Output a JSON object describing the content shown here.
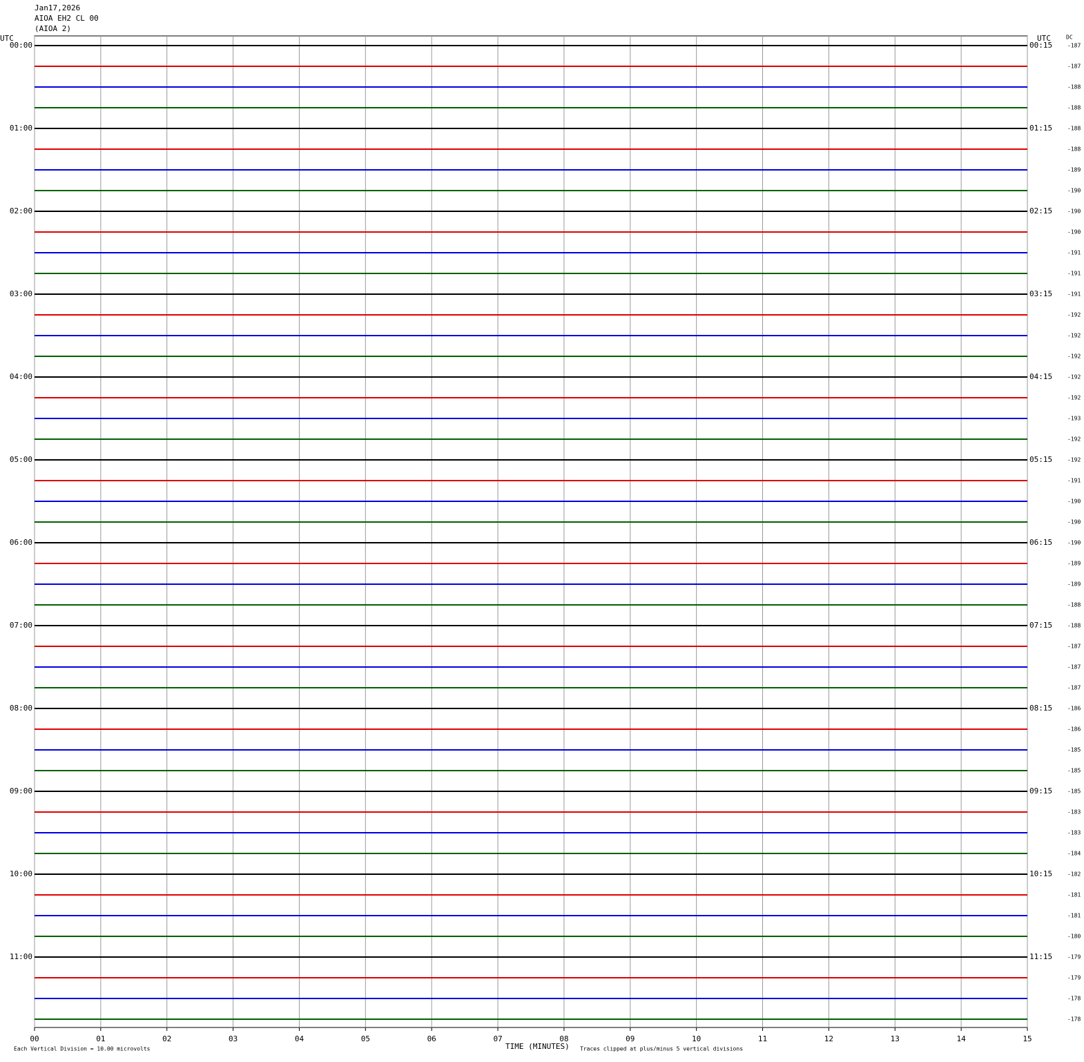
{
  "chart_data": {
    "type": "helicorder",
    "title_lines": [
      "Jan17,2026",
      "AIOA EH2 CL 00",
      "(AIOA 2)"
    ],
    "left_axis_title": "UTC",
    "right_axis_title": "UTC",
    "dc_title": "DC",
    "xlabel": "TIME (MINUTES)",
    "xlim": [
      0,
      15
    ],
    "xticks": [
      {
        "value": 0,
        "label": "00"
      },
      {
        "value": 1,
        "label": "01"
      },
      {
        "value": 2,
        "label": "02"
      },
      {
        "value": 3,
        "label": "03"
      },
      {
        "value": 4,
        "label": "04"
      },
      {
        "value": 5,
        "label": "05"
      },
      {
        "value": 6,
        "label": "06"
      },
      {
        "value": 7,
        "label": "07"
      },
      {
        "value": 8,
        "label": "08"
      },
      {
        "value": 9,
        "label": "09"
      },
      {
        "value": 10,
        "label": "10"
      },
      {
        "value": 11,
        "label": "11"
      },
      {
        "value": 12,
        "label": "12"
      },
      {
        "value": 13,
        "label": "13"
      },
      {
        "value": 14,
        "label": "14"
      },
      {
        "value": 15,
        "label": "15"
      }
    ],
    "grid": true,
    "rows_per_label": 4,
    "left_row_labels": [
      "00:00",
      "01:00",
      "02:00",
      "03:00",
      "04:00",
      "05:00",
      "06:00",
      "07:00",
      "08:00",
      "09:00",
      "10:00",
      "11:00"
    ],
    "right_row_labels": [
      "00:15",
      "01:15",
      "02:15",
      "03:15",
      "04:15",
      "05:15",
      "06:15",
      "07:15",
      "08:15",
      "09:15",
      "10:15",
      "11:15"
    ],
    "dc_values": [
      -187,
      -187,
      -188,
      -188,
      -188,
      -188,
      -189,
      -190,
      -190,
      -190,
      -191,
      -191,
      -191,
      -192,
      -192,
      -192,
      -192,
      -192,
      -193,
      -192,
      -192,
      -191,
      -190,
      -190,
      -190,
      -189,
      -189,
      -188,
      -188,
      -187,
      -187,
      -187,
      -186,
      -186,
      -185,
      -185,
      -185,
      -183,
      -183,
      -184,
      -182,
      -181,
      -181,
      -180,
      -179,
      -179,
      -178,
      -178
    ],
    "trace_colors": [
      "#000000",
      "#e00000",
      "#0000e0",
      "#006000"
    ],
    "footer_left": "Each Vertical Division =   10.00 microvolts",
    "footer_right": "Traces clipped at plus/minus 5 vertical divisions"
  }
}
